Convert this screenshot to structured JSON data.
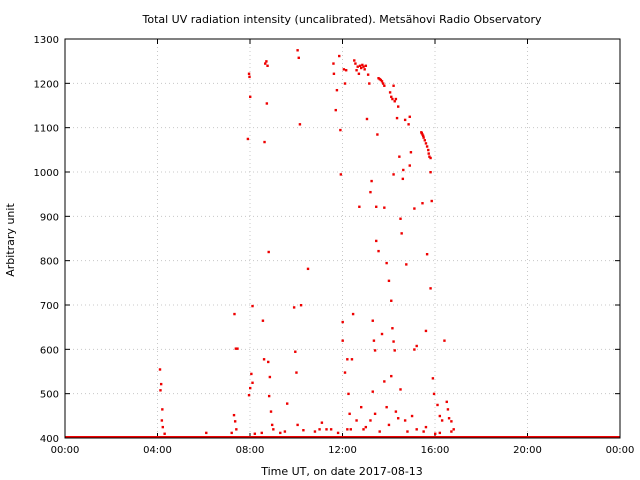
{
  "chart_data": {
    "type": "scatter",
    "title": "Total UV radiation intensity (uncalibrated). Metsähovi Radio Observatory",
    "xlabel": "Time UT, on date 2017-08-13",
    "ylabel": "Arbitrary unit",
    "xlim": [
      0,
      24
    ],
    "ylim": [
      400,
      1300
    ],
    "x_ticks": [
      {
        "value": 0,
        "label": "00:00"
      },
      {
        "value": 4,
        "label": "04:00"
      },
      {
        "value": 8,
        "label": "08:00"
      },
      {
        "value": 12,
        "label": "12:00"
      },
      {
        "value": 16,
        "label": "16:00"
      },
      {
        "value": 20,
        "label": "20:00"
      },
      {
        "value": 24,
        "label": "00:00"
      }
    ],
    "y_ticks": [
      400,
      500,
      600,
      700,
      800,
      900,
      1000,
      1100,
      1200,
      1300
    ],
    "grid": true,
    "color": "#ee0000",
    "baseline": {
      "value": 400,
      "x_range": [
        0,
        24
      ]
    },
    "points": [
      [
        4.1,
        555
      ],
      [
        4.15,
        522
      ],
      [
        4.12,
        508
      ],
      [
        4.2,
        465
      ],
      [
        4.18,
        440
      ],
      [
        4.22,
        425
      ],
      [
        4.3,
        410
      ],
      [
        6.1,
        412
      ],
      [
        7.2,
        412
      ],
      [
        7.3,
        452
      ],
      [
        7.35,
        438
      ],
      [
        7.4,
        420
      ],
      [
        7.32,
        680
      ],
      [
        7.38,
        602
      ],
      [
        7.45,
        602
      ],
      [
        7.9,
        1075
      ],
      [
        7.95,
        1222
      ],
      [
        7.97,
        1215
      ],
      [
        8.0,
        1170
      ],
      [
        8.05,
        545
      ],
      [
        8.1,
        698
      ],
      [
        8.0,
        513
      ],
      [
        7.95,
        497
      ],
      [
        8.1,
        525
      ],
      [
        8.2,
        410
      ],
      [
        8.5,
        412
      ],
      [
        8.55,
        665
      ],
      [
        8.6,
        578
      ],
      [
        8.62,
        1068
      ],
      [
        8.65,
        1245
      ],
      [
        8.7,
        1250
      ],
      [
        8.75,
        1240
      ],
      [
        8.72,
        1155
      ],
      [
        8.8,
        820
      ],
      [
        8.78,
        572
      ],
      [
        8.85,
        538
      ],
      [
        8.82,
        495
      ],
      [
        8.9,
        460
      ],
      [
        8.95,
        430
      ],
      [
        9.0,
        420
      ],
      [
        9.3,
        412
      ],
      [
        9.5,
        415
      ],
      [
        9.6,
        478
      ],
      [
        9.9,
        695
      ],
      [
        9.95,
        595
      ],
      [
        10.0,
        548
      ],
      [
        10.05,
        1275
      ],
      [
        10.1,
        1258
      ],
      [
        10.15,
        1108
      ],
      [
        10.2,
        700
      ],
      [
        10.5,
        782
      ],
      [
        10.05,
        430
      ],
      [
        10.3,
        418
      ],
      [
        10.8,
        415
      ],
      [
        11.0,
        420
      ],
      [
        11.1,
        435
      ],
      [
        11.3,
        420
      ],
      [
        11.5,
        420
      ],
      [
        11.6,
        1245
      ],
      [
        11.62,
        1222
      ],
      [
        11.7,
        1140
      ],
      [
        11.75,
        1185
      ],
      [
        11.85,
        1262
      ],
      [
        11.9,
        1095
      ],
      [
        11.92,
        995
      ],
      [
        12.0,
        662
      ],
      [
        12.05,
        1232
      ],
      [
        12.1,
        1200
      ],
      [
        12.15,
        1230
      ],
      [
        12.0,
        620
      ],
      [
        12.1,
        548
      ],
      [
        12.2,
        578
      ],
      [
        12.25,
        500
      ],
      [
        12.3,
        455
      ],
      [
        12.35,
        420
      ],
      [
        12.4,
        578
      ],
      [
        12.45,
        680
      ],
      [
        12.5,
        1252
      ],
      [
        12.55,
        1245
      ],
      [
        12.6,
        1230
      ],
      [
        12.65,
        1238
      ],
      [
        12.7,
        1222
      ],
      [
        12.75,
        1240
      ],
      [
        12.8,
        1235
      ],
      [
        12.85,
        1242
      ],
      [
        12.9,
        1238
      ],
      [
        12.95,
        1232
      ],
      [
        13.0,
        1240
      ],
      [
        12.72,
        922
      ],
      [
        13.1,
        1220
      ],
      [
        13.15,
        1200
      ],
      [
        13.05,
        1120
      ],
      [
        13.2,
        955
      ],
      [
        13.25,
        980
      ],
      [
        13.3,
        665
      ],
      [
        13.35,
        620
      ],
      [
        13.4,
        598
      ],
      [
        13.45,
        922
      ],
      [
        13.5,
        1085
      ],
      [
        13.55,
        1212
      ],
      [
        13.6,
        1210
      ],
      [
        13.65,
        1208
      ],
      [
        13.7,
        1205
      ],
      [
        13.75,
        1200
      ],
      [
        13.8,
        1195
      ],
      [
        13.45,
        845
      ],
      [
        13.55,
        822
      ],
      [
        13.7,
        635
      ],
      [
        13.8,
        920
      ],
      [
        13.9,
        795
      ],
      [
        14.0,
        755
      ],
      [
        14.05,
        1180
      ],
      [
        14.1,
        1170
      ],
      [
        14.15,
        1165
      ],
      [
        14.2,
        1195
      ],
      [
        14.25,
        1160
      ],
      [
        14.3,
        1165
      ],
      [
        14.4,
        1148
      ],
      [
        14.2,
        995
      ],
      [
        14.1,
        710
      ],
      [
        14.15,
        648
      ],
      [
        14.2,
        618
      ],
      [
        14.25,
        598
      ],
      [
        14.35,
        1122
      ],
      [
        14.45,
        1035
      ],
      [
        14.5,
        895
      ],
      [
        14.55,
        862
      ],
      [
        14.6,
        985
      ],
      [
        14.62,
        1005
      ],
      [
        14.7,
        1118
      ],
      [
        14.75,
        792
      ],
      [
        14.85,
        1108
      ],
      [
        14.9,
        1125
      ],
      [
        14.95,
        1045
      ],
      [
        14.9,
        1015
      ],
      [
        15.1,
        918
      ],
      [
        15.1,
        600
      ],
      [
        15.2,
        608
      ],
      [
        15.4,
        1090
      ],
      [
        15.42,
        1088
      ],
      [
        15.45,
        1085
      ],
      [
        15.48,
        1082
      ],
      [
        15.5,
        1078
      ],
      [
        15.55,
        1072
      ],
      [
        15.6,
        1065
      ],
      [
        15.65,
        1058
      ],
      [
        15.7,
        1050
      ],
      [
        15.72,
        1042
      ],
      [
        15.75,
        1035
      ],
      [
        15.8,
        1032
      ],
      [
        15.45,
        930
      ],
      [
        15.6,
        642
      ],
      [
        15.65,
        815
      ],
      [
        15.8,
        738
      ],
      [
        15.85,
        935
      ],
      [
        15.9,
        535
      ],
      [
        15.95,
        500
      ],
      [
        15.8,
        1000
      ],
      [
        16.1,
        475
      ],
      [
        16.2,
        450
      ],
      [
        16.3,
        440
      ],
      [
        16.4,
        620
      ],
      [
        16.5,
        482
      ],
      [
        16.55,
        465
      ],
      [
        16.6,
        445
      ],
      [
        16.7,
        438
      ],
      [
        16.8,
        420
      ],
      [
        12.9,
        420
      ],
      [
        13.2,
        440
      ],
      [
        13.6,
        415
      ],
      [
        14.0,
        430
      ],
      [
        14.4,
        445
      ],
      [
        14.8,
        415
      ],
      [
        15.2,
        420
      ],
      [
        15.6,
        425
      ],
      [
        16.0,
        410
      ],
      [
        12.6,
        440
      ],
      [
        13.0,
        425
      ],
      [
        13.4,
        455
      ],
      [
        13.9,
        470
      ],
      [
        14.3,
        460
      ],
      [
        14.7,
        440
      ],
      [
        15.0,
        450
      ],
      [
        15.5,
        415
      ],
      [
        16.2,
        412
      ],
      [
        11.8,
        412
      ],
      [
        12.2,
        420
      ],
      [
        13.8,
        528
      ],
      [
        14.1,
        540
      ],
      [
        14.5,
        510
      ],
      [
        13.3,
        505
      ],
      [
        12.8,
        470
      ],
      [
        16.7,
        415
      ]
    ]
  }
}
